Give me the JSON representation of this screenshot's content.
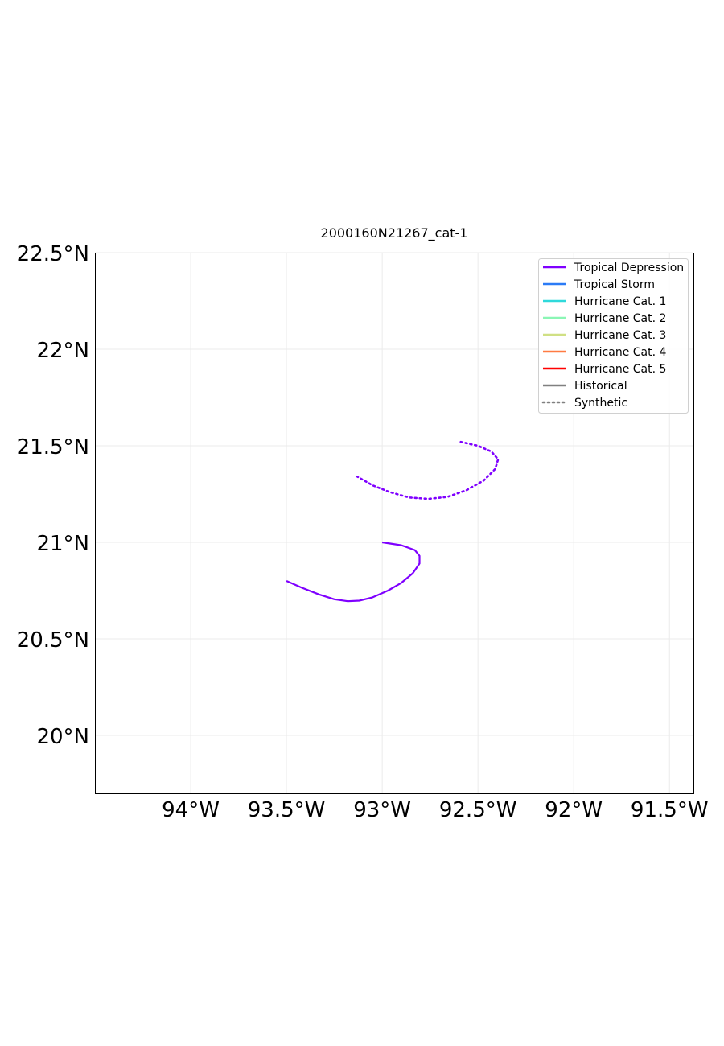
{
  "chart_data": {
    "type": "line",
    "title": "2000160N21267_cat-1",
    "xlabel": "",
    "ylabel": "",
    "xlim": [
      -94.5,
      -91.375
    ],
    "ylim": [
      19.7,
      22.5
    ],
    "grid": true,
    "legend_position": "top-right",
    "x_ticks": [
      {
        "value": -94.0,
        "label": "94°W"
      },
      {
        "value": -93.5,
        "label": "93.5°W"
      },
      {
        "value": -93.0,
        "label": "93°W"
      },
      {
        "value": -92.5,
        "label": "92.5°W"
      },
      {
        "value": -92.0,
        "label": "92°W"
      },
      {
        "value": -91.5,
        "label": "91.5°W"
      }
    ],
    "y_ticks": [
      {
        "value": 20.0,
        "label": "20°N"
      },
      {
        "value": 20.5,
        "label": "20.5°N"
      },
      {
        "value": 21.0,
        "label": "21°N"
      },
      {
        "value": 21.5,
        "label": "21.5°N"
      },
      {
        "value": 22.0,
        "label": "22°N"
      },
      {
        "value": 22.5,
        "label": "22.5°N"
      }
    ],
    "legend": [
      {
        "label": "Tropical Depression",
        "color": "#7f00ff",
        "style": "solid"
      },
      {
        "label": "Tropical Storm",
        "color": "#2b7bf6",
        "style": "solid"
      },
      {
        "label": "Hurricane Cat. 1",
        "color": "#2fd9db",
        "style": "solid"
      },
      {
        "label": "Hurricane Cat. 2",
        "color": "#8bf6b5",
        "style": "solid"
      },
      {
        "label": "Hurricane Cat. 3",
        "color": "#d0e084",
        "style": "solid"
      },
      {
        "label": "Hurricane Cat. 4",
        "color": "#ff7b42",
        "style": "solid"
      },
      {
        "label": "Hurricane Cat. 5",
        "color": "#ff0000",
        "style": "solid"
      },
      {
        "label": "Historical",
        "color": "#808080",
        "style": "solid"
      },
      {
        "label": "Synthetic",
        "color": "#808080",
        "style": "dotted"
      }
    ],
    "series": [
      {
        "kind": "historical",
        "category": "Tropical Depression",
        "color": "#7f00ff",
        "style": "solid",
        "points": [
          {
            "lon": -93.0,
            "lat": 21.0
          },
          {
            "lon": -92.9,
            "lat": 20.985
          },
          {
            "lon": -92.83,
            "lat": 20.96
          },
          {
            "lon": -92.805,
            "lat": 20.93
          },
          {
            "lon": -92.805,
            "lat": 20.89
          },
          {
            "lon": -92.84,
            "lat": 20.84
          },
          {
            "lon": -92.9,
            "lat": 20.79
          },
          {
            "lon": -92.97,
            "lat": 20.75
          },
          {
            "lon": -93.05,
            "lat": 20.715
          },
          {
            "lon": -93.12,
            "lat": 20.698
          },
          {
            "lon": -93.18,
            "lat": 20.695
          },
          {
            "lon": -93.25,
            "lat": 20.705
          },
          {
            "lon": -93.33,
            "lat": 20.73
          },
          {
            "lon": -93.42,
            "lat": 20.765
          },
          {
            "lon": -93.5,
            "lat": 20.8
          }
        ]
      },
      {
        "kind": "synthetic",
        "category": "Tropical Depression",
        "color": "#7f00ff",
        "style": "dotted",
        "points": [
          {
            "lon": -92.59,
            "lat": 21.52
          },
          {
            "lon": -92.5,
            "lat": 21.5
          },
          {
            "lon": -92.43,
            "lat": 21.47
          },
          {
            "lon": -92.395,
            "lat": 21.43
          },
          {
            "lon": -92.41,
            "lat": 21.38
          },
          {
            "lon": -92.47,
            "lat": 21.32
          },
          {
            "lon": -92.56,
            "lat": 21.27
          },
          {
            "lon": -92.66,
            "lat": 21.235
          },
          {
            "lon": -92.76,
            "lat": 21.225
          },
          {
            "lon": -92.86,
            "lat": 21.232
          },
          {
            "lon": -92.96,
            "lat": 21.26
          },
          {
            "lon": -93.05,
            "lat": 21.295
          },
          {
            "lon": -93.13,
            "lat": 21.34
          }
        ]
      }
    ]
  }
}
